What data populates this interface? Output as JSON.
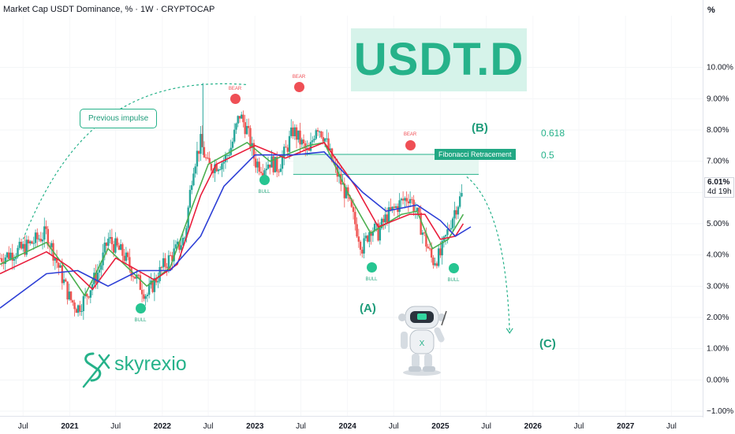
{
  "header": {
    "title": "Market Cap USDT Dominance, % · 1W · CRYPTOCAP",
    "unit_label": "%"
  },
  "price_tag": {
    "value": "6.01%",
    "countdown": "4d 19h"
  },
  "brand_label": "USDT.D",
  "logo_text": "skyrexio",
  "annotations": {
    "previous_impulse": "Previous impulse",
    "fib_retracement": "Fibonacci Retracement",
    "fib_618": "0.618",
    "fib_05": "0.5",
    "wave_b": "(B)",
    "wave_a": "(A)",
    "wave_c": "(C)"
  },
  "signals": [
    {
      "type": "bull",
      "text": "BULL"
    },
    {
      "type": "bull",
      "text": "BULL"
    },
    {
      "type": "bull",
      "text": "BULL"
    },
    {
      "type": "bull",
      "text": "BULL"
    },
    {
      "type": "bear",
      "text": "BEAR"
    },
    {
      "type": "bear",
      "text": "BEAR"
    },
    {
      "type": "bear",
      "text": "BEAR"
    }
  ],
  "colors": {
    "up": "#26a69a",
    "down": "#ef5350",
    "ma_fast": "#4caf50",
    "ma_mid": "#e91e3c",
    "ma_slow": "#2d3fd6",
    "accent": "#26b28a"
  },
  "chart_data": {
    "type": "line",
    "title": "Market Cap USDT Dominance, % · 1W · CRYPTOCAP",
    "ylabel": "%",
    "ylim": [
      -1,
      11
    ],
    "yticks": [
      -1,
      0,
      1,
      2,
      3,
      4,
      5,
      6,
      7,
      8,
      9,
      10
    ],
    "ytick_labels": [
      "−1.00%",
      "0.00%",
      "1.00%",
      "2.00%",
      "3.00%",
      "4.00%",
      "5.00%",
      "6.00%",
      "7.00%",
      "8.00%",
      "9.00%",
      "10.00%"
    ],
    "xlim": [
      "2020-04-01",
      "2027-11-01"
    ],
    "xticks": [
      {
        "date": "2020-07-01",
        "label": "Jul"
      },
      {
        "date": "2021-01-01",
        "label": "2021"
      },
      {
        "date": "2021-07-01",
        "label": "Jul"
      },
      {
        "date": "2022-01-01",
        "label": "2022"
      },
      {
        "date": "2022-07-01",
        "label": "Jul"
      },
      {
        "date": "2023-01-01",
        "label": "2023"
      },
      {
        "date": "2023-07-01",
        "label": "Jul"
      },
      {
        "date": "2024-01-01",
        "label": "2024"
      },
      {
        "date": "2024-07-01",
        "label": "Jul"
      },
      {
        "date": "2025-01-01",
        "label": "2025"
      },
      {
        "date": "2025-07-01",
        "label": "Jul"
      },
      {
        "date": "2026-01-01",
        "label": "2026"
      },
      {
        "date": "2026-07-01",
        "label": "Jul"
      },
      {
        "date": "2027-01-01",
        "label": "2027"
      },
      {
        "date": "2027-07-01",
        "label": "Jul"
      }
    ],
    "series": [
      {
        "kind": "price",
        "points": [
          [
            "2020-04-01",
            3.9
          ],
          [
            "2020-07-01",
            4.2
          ],
          [
            "2020-10-01",
            4.7
          ],
          [
            "2020-11-01",
            4.0
          ],
          [
            "2021-01-01",
            2.6
          ],
          [
            "2021-02-01",
            2.3
          ],
          [
            "2021-03-01",
            2.6
          ],
          [
            "2021-05-01",
            3.6
          ],
          [
            "2021-06-01",
            4.5
          ],
          [
            "2021-08-01",
            4.0
          ],
          [
            "2021-10-01",
            3.1
          ],
          [
            "2021-11-01",
            2.7
          ],
          [
            "2022-01-01",
            3.6
          ],
          [
            "2022-03-01",
            4.2
          ],
          [
            "2022-04-01",
            4.6
          ],
          [
            "2022-05-01",
            6.8
          ],
          [
            "2022-06-01",
            7.6
          ],
          [
            "2022-07-01",
            6.8
          ],
          [
            "2022-09-01",
            7.0
          ],
          [
            "2022-10-01",
            7.5
          ],
          [
            "2022-11-01",
            8.5
          ],
          [
            "2022-12-01",
            8.0
          ],
          [
            "2023-01-01",
            7.0
          ],
          [
            "2023-02-01",
            6.8
          ],
          [
            "2023-03-01",
            7.0
          ],
          [
            "2023-04-01",
            6.8
          ],
          [
            "2023-05-01",
            7.3
          ],
          [
            "2023-06-01",
            8.0
          ],
          [
            "2023-07-01",
            7.6
          ],
          [
            "2023-08-01",
            7.2
          ],
          [
            "2023-09-01",
            8.2
          ],
          [
            "2023-10-01",
            7.8
          ],
          [
            "2023-11-01",
            7.0
          ],
          [
            "2024-01-01",
            5.8
          ],
          [
            "2024-03-01",
            4.2
          ],
          [
            "2024-04-01",
            4.9
          ],
          [
            "2024-05-01",
            4.7
          ],
          [
            "2024-06-01",
            5.2
          ],
          [
            "2024-08-01",
            5.7
          ],
          [
            "2024-09-01",
            5.9
          ],
          [
            "2024-10-01",
            5.3
          ],
          [
            "2024-11-01",
            4.5
          ],
          [
            "2024-12-01",
            3.8
          ],
          [
            "2025-01-01",
            4.0
          ],
          [
            "2025-02-01",
            4.8
          ],
          [
            "2025-03-01",
            5.5
          ],
          [
            "2025-04-01",
            6.0
          ]
        ]
      },
      {
        "kind": "ma_fast",
        "points": [
          [
            "2020-04-01",
            3.7
          ],
          [
            "2020-10-01",
            4.4
          ],
          [
            "2021-01-01",
            3.4
          ],
          [
            "2021-03-01",
            2.7
          ],
          [
            "2021-06-01",
            4.2
          ],
          [
            "2021-11-01",
            3.0
          ],
          [
            "2022-02-01",
            3.6
          ],
          [
            "2022-05-01",
            5.6
          ],
          [
            "2022-07-01",
            6.9
          ],
          [
            "2022-12-01",
            7.6
          ],
          [
            "2023-03-01",
            7.0
          ],
          [
            "2023-08-01",
            7.5
          ],
          [
            "2023-10-01",
            7.6
          ],
          [
            "2024-01-01",
            6.0
          ],
          [
            "2024-04-01",
            4.7
          ],
          [
            "2024-08-01",
            5.3
          ],
          [
            "2024-10-01",
            5.4
          ],
          [
            "2024-12-01",
            4.2
          ],
          [
            "2025-02-01",
            4.5
          ],
          [
            "2025-04-01",
            5.3
          ]
        ]
      },
      {
        "kind": "ma_mid",
        "points": [
          [
            "2020-04-01",
            3.4
          ],
          [
            "2020-10-01",
            4.1
          ],
          [
            "2021-01-01",
            3.6
          ],
          [
            "2021-04-01",
            2.9
          ],
          [
            "2021-07-01",
            3.9
          ],
          [
            "2021-12-01",
            3.2
          ],
          [
            "2022-03-01",
            3.7
          ],
          [
            "2022-06-01",
            5.9
          ],
          [
            "2022-08-01",
            6.9
          ],
          [
            "2023-01-01",
            7.5
          ],
          [
            "2023-05-01",
            7.1
          ],
          [
            "2023-10-01",
            7.6
          ],
          [
            "2024-02-01",
            6.2
          ],
          [
            "2024-05-01",
            4.9
          ],
          [
            "2024-09-01",
            5.3
          ],
          [
            "2024-11-01",
            5.3
          ],
          [
            "2025-01-01",
            4.5
          ],
          [
            "2025-03-01",
            4.6
          ],
          [
            "2025-04-01",
            5.0
          ]
        ]
      },
      {
        "kind": "ma_slow",
        "points": [
          [
            "2020-04-01",
            2.3
          ],
          [
            "2020-10-01",
            3.4
          ],
          [
            "2021-02-01",
            3.5
          ],
          [
            "2021-06-01",
            3.0
          ],
          [
            "2021-10-01",
            3.5
          ],
          [
            "2022-02-01",
            3.5
          ],
          [
            "2022-06-01",
            4.6
          ],
          [
            "2022-09-01",
            6.2
          ],
          [
            "2023-01-01",
            7.2
          ],
          [
            "2023-06-01",
            7.2
          ],
          [
            "2023-10-01",
            7.3
          ],
          [
            "2024-03-01",
            6.0
          ],
          [
            "2024-06-01",
            5.4
          ],
          [
            "2024-10-01",
            5.6
          ],
          [
            "2025-01-01",
            5.1
          ],
          [
            "2025-03-01",
            4.6
          ],
          [
            "2025-05-01",
            4.9
          ]
        ]
      }
    ],
    "fib_zone": {
      "from": "2023-06-01",
      "to": "2025-06-01",
      "levels": [
        0.618,
        0.5
      ],
      "upper": 7.22,
      "lower": 6.58
    },
    "projection": {
      "from": "2025-04-15",
      "from_value": 6.5,
      "to": "2025-10-01",
      "to_value": 1.5
    },
    "impulse_arc": {
      "from": "2020-07-01",
      "from_value": 4.5,
      "to": "2022-12-01",
      "to_value": 9.45
    }
  }
}
